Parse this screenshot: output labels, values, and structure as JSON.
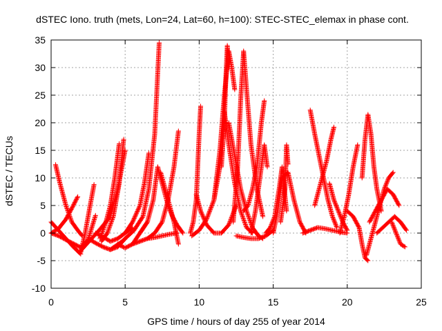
{
  "chart_data": {
    "type": "scatter",
    "title": "dSTEC Iono. truth (mets, Lon=24, Lat=60, h=100): STEC-STEC_elemax in phase cont.",
    "xlabel": "GPS time / hours of day 255 of year 2014",
    "ylabel": "dSTEC  / TECUs",
    "xlim": [
      0,
      25
    ],
    "ylim": [
      -10,
      35
    ],
    "x_ticks": [
      "0",
      "5",
      "10",
      "15",
      "20",
      "25"
    ],
    "y_ticks": [
      "-10",
      "-5",
      "0",
      "5",
      "10",
      "15",
      "20",
      "25",
      "30",
      "35"
    ],
    "grid": true,
    "marker": "+",
    "color": "#ff0000",
    "arcs": [
      {
        "x": [
          0.0,
          0.5,
          1.0,
          1.5,
          2.0
        ],
        "y": [
          2,
          0.5,
          -1,
          -2.5,
          -3.8
        ]
      },
      {
        "x": [
          0.3,
          0.6,
          1.0,
          1.4,
          1.8,
          2.1
        ],
        "y": [
          12.4,
          9,
          5,
          2,
          0.5,
          -0.5
        ]
      },
      {
        "x": [
          0.0,
          0.5,
          1.0,
          1.4,
          1.8
        ],
        "y": [
          0,
          0.8,
          2.5,
          4.5,
          6.6
        ]
      },
      {
        "x": [
          0.0,
          0.5,
          1.2,
          2.0,
          2.5,
          3.0
        ],
        "y": [
          0,
          -0.5,
          -1.5,
          -2.6,
          -1.2,
          3.2
        ]
      },
      {
        "x": [
          2.0,
          2.3,
          2.6,
          2.9
        ],
        "y": [
          -3.5,
          0,
          4.5,
          8.8
        ]
      },
      {
        "x": [
          1.9,
          2.4,
          2.9,
          3.4,
          4.0,
          4.5,
          5.0
        ],
        "y": [
          -3.5,
          -2,
          -0.5,
          1,
          3,
          8,
          15
        ]
      },
      {
        "x": [
          3.3,
          3.7,
          4.0,
          4.3,
          4.6
        ],
        "y": [
          -1,
          2,
          5,
          10,
          16.2
        ]
      },
      {
        "x": [
          3.4,
          3.8,
          4.2,
          4.6,
          4.9
        ],
        "y": [
          -1.5,
          0,
          3,
          9,
          17
        ]
      },
      {
        "x": [
          2.5,
          3.0,
          3.5,
          4.0,
          4.5,
          5.0
        ],
        "y": [
          -1,
          -1.8,
          -2.5,
          -3,
          -2.5,
          -1
        ]
      },
      {
        "x": [
          3.0,
          3.5,
          4.0,
          4.5,
          5.0,
          5.5
        ],
        "y": [
          0,
          -0.7,
          -1.5,
          -1,
          0,
          1
        ]
      },
      {
        "x": [
          4.5,
          5.0,
          5.5,
          6.0,
          6.5
        ],
        "y": [
          -2,
          -2.7,
          -2,
          0,
          2
        ]
      },
      {
        "x": [
          4.0,
          4.8,
          5.6,
          6.2,
          6.6,
          7.0,
          7.3
        ],
        "y": [
          -3,
          -1.5,
          0.5,
          3,
          8,
          18,
          34.5
        ]
      },
      {
        "x": [
          5.0,
          5.5,
          6.0,
          6.3,
          6.6
        ],
        "y": [
          0,
          2,
          5,
          9,
          14.5
        ]
      },
      {
        "x": [
          5.5,
          6.0,
          6.5,
          7.0,
          7.5,
          8.0,
          8.5
        ],
        "y": [
          -2,
          -1.5,
          -1,
          -0.8,
          -0.5,
          -0.2,
          0
        ]
      },
      {
        "x": [
          6.0,
          6.5,
          6.9,
          7.2
        ],
        "y": [
          0,
          2,
          6,
          12
        ]
      },
      {
        "x": [
          6.5,
          7.0,
          7.5,
          7.9,
          8.3,
          8.6
        ],
        "y": [
          -1,
          0,
          2,
          6,
          12,
          18.5
        ]
      },
      {
        "x": [
          7.2,
          7.6,
          7.9,
          8.2,
          8.5,
          8.9
        ],
        "y": [
          12,
          8,
          5,
          3,
          1.5,
          0
        ]
      },
      {
        "x": [
          7.4,
          7.7,
          8.0,
          8.3,
          8.6
        ],
        "y": [
          11,
          8,
          5,
          2,
          -2
        ]
      },
      {
        "x": [
          9.4,
          9.6,
          9.8,
          9.9,
          10.0,
          10.1
        ],
        "y": [
          0,
          2,
          6,
          12,
          18,
          23
        ]
      },
      {
        "x": [
          9.8,
          10.1,
          10.5,
          11.0,
          11.5,
          12.0,
          12.5
        ],
        "y": [
          7,
          4,
          1.5,
          0,
          0,
          1.5,
          5
        ]
      },
      {
        "x": [
          9.5,
          10.0,
          10.5,
          11.0,
          11.4,
          11.7
        ],
        "y": [
          -0.5,
          0.5,
          2.5,
          6,
          12,
          20
        ]
      },
      {
        "x": [
          11.5,
          11.7,
          11.8,
          11.9,
          12.0
        ],
        "y": [
          12,
          20,
          28,
          34,
          30
        ]
      },
      {
        "x": [
          11.7,
          12.0,
          12.4,
          12.8,
          13.2,
          13.6
        ],
        "y": [
          22,
          16,
          9,
          4,
          1,
          0
        ]
      },
      {
        "x": [
          11.0,
          11.4,
          11.7,
          12.0,
          12.2,
          12.4
        ],
        "y": [
          6,
          15,
          25,
          33,
          30,
          26
        ]
      },
      {
        "x": [
          12.0,
          12.4,
          12.8,
          13.2,
          13.6,
          14.0,
          14.3
        ],
        "y": [
          20,
          14,
          8,
          4,
          1,
          -0.5,
          -1
        ]
      },
      {
        "x": [
          12.3,
          12.6,
          12.8,
          13.0,
          13.2,
          13.5,
          13.9,
          14.3
        ],
        "y": [
          2,
          12,
          24,
          33,
          26,
          16,
          8,
          3
        ]
      },
      {
        "x": [
          12.5,
          13.0,
          13.5,
          14.0,
          14.5,
          15.0
        ],
        "y": [
          -0.5,
          -0.8,
          -1,
          -1,
          -0.5,
          0.5
        ]
      },
      {
        "x": [
          13.0,
          13.3,
          13.6,
          13.9,
          14.2,
          14.4
        ],
        "y": [
          4,
          5,
          8,
          12,
          20,
          24
        ]
      },
      {
        "x": [
          13.5,
          13.8,
          14.1,
          14.4,
          14.6
        ],
        "y": [
          0,
          4,
          10,
          16,
          12
        ]
      },
      {
        "x": [
          14.5,
          14.8,
          15.1,
          15.4,
          15.6,
          15.9
        ],
        "y": [
          0,
          1,
          3,
          8,
          12,
          4
        ]
      },
      {
        "x": [
          15.0,
          15.3,
          15.6,
          16.0,
          16.4,
          16.8,
          17.2
        ],
        "y": [
          0,
          4,
          10,
          11,
          6,
          2,
          0
        ]
      },
      {
        "x": [
          15.5,
          15.8,
          15.9,
          16.0
        ],
        "y": [
          2,
          8,
          16,
          12.5
        ]
      },
      {
        "x": [
          17.0,
          17.5,
          18.0,
          18.5,
          19.0,
          19.5,
          20.0
        ],
        "y": [
          0,
          0.5,
          1,
          0.8,
          0.5,
          0.2,
          0
        ]
      },
      {
        "x": [
          17.5,
          17.8,
          18.1,
          18.4,
          18.7,
          19.0,
          19.3
        ],
        "y": [
          22.3,
          18,
          14,
          10,
          6,
          3,
          1
        ]
      },
      {
        "x": [
          17.8,
          18.2,
          18.6,
          18.9,
          19.1
        ],
        "y": [
          5,
          9,
          13,
          17,
          19.2
        ]
      },
      {
        "x": [
          18.8,
          19.1,
          19.4,
          19.7,
          20.0
        ],
        "y": [
          9,
          6,
          4,
          2,
          0.5
        ]
      },
      {
        "x": [
          19.5,
          19.8,
          20.1,
          20.4,
          20.7
        ],
        "y": [
          0,
          3,
          7,
          12,
          16
        ]
      },
      {
        "x": [
          20.0,
          20.4,
          20.8,
          21.0,
          21.2,
          21.4
        ],
        "y": [
          4,
          3,
          1,
          -2,
          -4.5,
          -5
        ]
      },
      {
        "x": [
          21.0,
          21.2,
          21.4,
          21.6,
          21.8,
          22.0,
          22.3
        ],
        "y": [
          10,
          17,
          21.5,
          18,
          12,
          8,
          4
        ]
      },
      {
        "x": [
          21.3,
          21.6,
          21.9,
          22.2,
          22.5,
          22.8,
          23.1
        ],
        "y": [
          -4,
          -1,
          2,
          5,
          8,
          10,
          11
        ]
      },
      {
        "x": [
          21.5,
          21.9,
          22.3,
          22.7,
          23.1,
          23.5
        ],
        "y": [
          2,
          4,
          6,
          8,
          7,
          5
        ]
      },
      {
        "x": [
          22.0,
          22.4,
          22.8,
          23.2,
          23.6,
          24.0
        ],
        "y": [
          0,
          1,
          2,
          3,
          2,
          0.5
        ]
      },
      {
        "x": [
          23.0,
          23.3,
          23.6,
          23.9
        ],
        "y": [
          2,
          0,
          -2,
          -2.5
        ]
      }
    ]
  }
}
